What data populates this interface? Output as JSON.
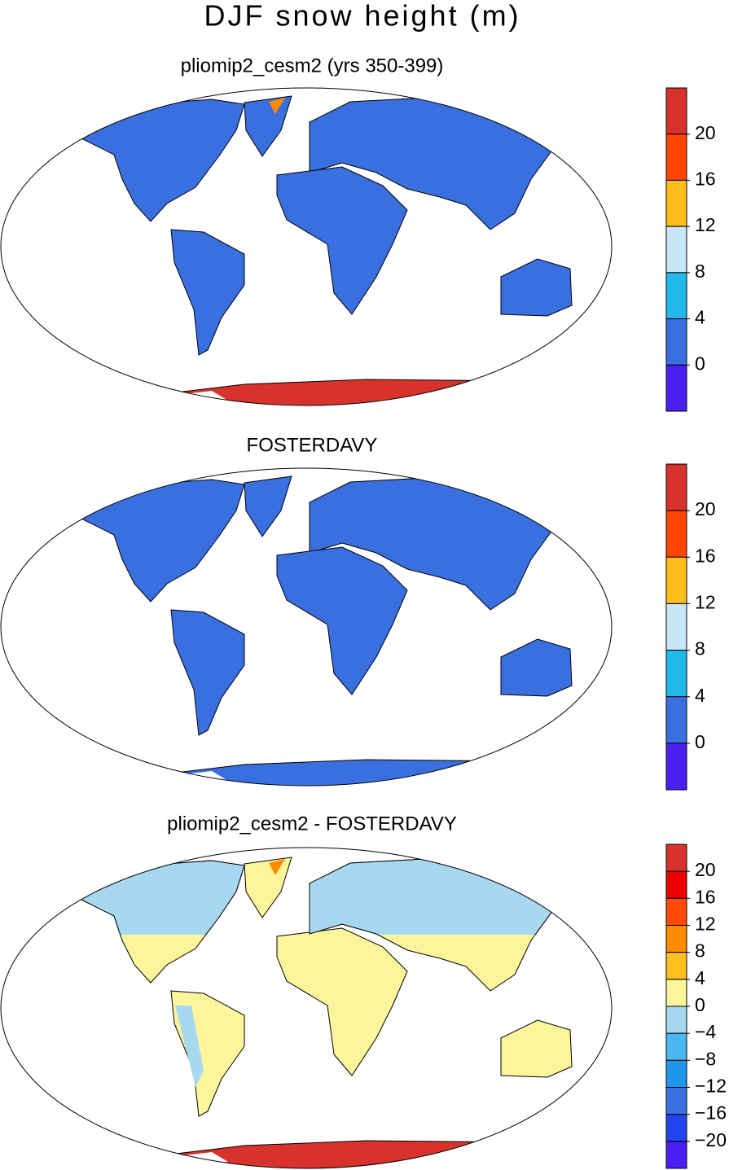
{
  "title": "DJF snow height (m)",
  "panels": [
    {
      "title": "pliomip2_cesm2 (yrs 350-399)",
      "colorbar": {
        "ticks": [
          20,
          16,
          12,
          8,
          4,
          0
        ],
        "colors": [
          "#d8322c",
          "#ff4500",
          "#ffbc1a",
          "#c9e6f6",
          "#21b8ec",
          "#3a6fe0",
          "#4a1ff2"
        ]
      }
    },
    {
      "title": "FOSTERDAVY",
      "colorbar": {
        "ticks": [
          20,
          16,
          12,
          8,
          4,
          0
        ],
        "colors": [
          "#d8322c",
          "#ff4500",
          "#ffbc1a",
          "#c9e6f6",
          "#21b8ec",
          "#3a6fe0",
          "#4a1ff2"
        ]
      }
    },
    {
      "title": "pliomip2_cesm2 - FOSTERDAVY",
      "colorbar": {
        "ticks": [
          20,
          16,
          12,
          8,
          4,
          0,
          {
            "value": -4,
            "label": "−4"
          },
          {
            "value": -8,
            "label": "−8"
          },
          {
            "value": -12,
            "label": "−12"
          },
          {
            "value": -16,
            "label": "−16"
          },
          {
            "value": -20,
            "label": "−20"
          }
        ],
        "colors": [
          "#d8322c",
          "#ee0000",
          "#ff4a0a",
          "#ff8c00",
          "#ffc020",
          "#fcf59c",
          "#a8d8f0",
          "#4ab8ef",
          "#1e96ee",
          "#3a70e0",
          "#2244ee",
          "#4a1ff2"
        ]
      }
    }
  ]
}
